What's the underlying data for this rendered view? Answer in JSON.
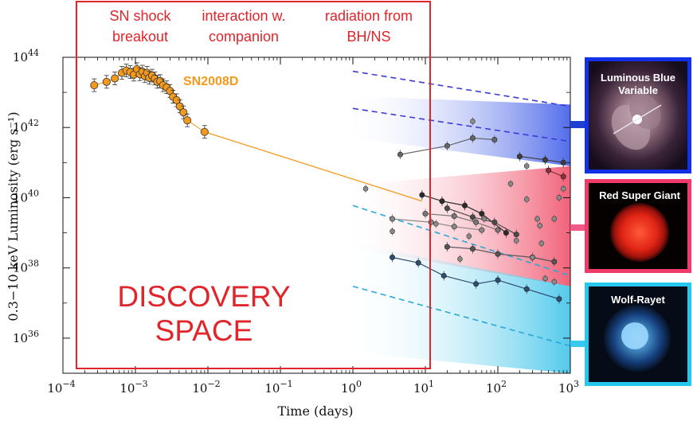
{
  "chart_data": {
    "type": "scatter",
    "xlabel": "Time (days)",
    "ylabel": "0.3−10 keV Luminosity (erg s⁻¹)",
    "x_scale": "log",
    "y_scale": "log",
    "xlim": [
      0.0001,
      1000
    ],
    "ylim": [
      1e+35,
      1e+44
    ],
    "x_ticks": [
      {
        "value": 0.0001,
        "base": "10",
        "exp": "−4"
      },
      {
        "value": 0.001,
        "base": "10",
        "exp": "−3"
      },
      {
        "value": 0.01,
        "base": "10",
        "exp": "−2"
      },
      {
        "value": 0.1,
        "base": "10",
        "exp": "−1"
      },
      {
        "value": 1,
        "base": "10",
        "exp": "0"
      },
      {
        "value": 10,
        "base": "10",
        "exp": "1"
      },
      {
        "value": 100,
        "base": "10",
        "exp": "2"
      },
      {
        "value": 1000,
        "base": "10",
        "exp": "3"
      }
    ],
    "y_ticks": [
      {
        "value": 1e+36,
        "base": "10",
        "exp": "36"
      },
      {
        "value": 1e+38,
        "base": "10",
        "exp": "38"
      },
      {
        "value": 1e+40,
        "base": "10",
        "exp": "40"
      },
      {
        "value": 1e+42,
        "base": "10",
        "exp": "42"
      },
      {
        "value": 1e+44,
        "base": "10",
        "exp": "44"
      }
    ],
    "sn2008d": {
      "label": "SN2008D",
      "color": "#f39a1e",
      "points": [
        [
          0.00027,
          1.6e+43
        ],
        [
          0.0004,
          2e+43
        ],
        [
          0.00052,
          2.5e+43
        ],
        [
          0.00065,
          3.6e+43
        ],
        [
          0.00075,
          4.2e+43
        ],
        [
          0.00085,
          3.8e+43
        ],
        [
          0.00095,
          3.2e+43
        ],
        [
          0.00105,
          4.6e+43
        ],
        [
          0.00115,
          3.3e+43
        ],
        [
          0.00125,
          3.9e+43
        ],
        [
          0.00135,
          2.9e+43
        ],
        [
          0.00145,
          3.6e+43
        ],
        [
          0.00155,
          2.6e+43
        ],
        [
          0.0017,
          3e+43
        ],
        [
          0.00185,
          2.5e+43
        ],
        [
          0.002,
          2e+43
        ],
        [
          0.0022,
          2.1e+43
        ],
        [
          0.0024,
          1.6e+43
        ],
        [
          0.0027,
          1.4e+43
        ],
        [
          0.003,
          1.1e+43
        ],
        [
          0.0033,
          7.5e+42
        ],
        [
          0.0037,
          6e+42
        ],
        [
          0.0041,
          4e+42
        ],
        [
          0.0046,
          2.7e+42
        ],
        [
          0.0052,
          1.6e+42
        ],
        [
          0.009,
          7.5e+41
        ]
      ],
      "fit_line": [
        [
          0.009,
          7.5e+41
        ],
        [
          9,
          8e+39
        ]
      ]
    },
    "sn_samples": [
      {
        "color": "#2b2b2b",
        "points": [
          [
            9,
            1.2e+40
          ],
          [
            17,
            8e+39
          ],
          [
            35,
            6e+39
          ],
          [
            60,
            3.5e+39
          ],
          [
            130,
            1e+39
          ]
        ]
      },
      {
        "color": "#4a4a4a",
        "points": [
          [
            20,
            5e+39
          ],
          [
            45,
            2.8e+39
          ],
          [
            90,
            2e+39
          ],
          [
            180,
            9e+38
          ]
        ]
      },
      {
        "color": "#777777",
        "points": [
          [
            10,
            3.5e+39
          ],
          [
            25,
            3e+39
          ],
          [
            50,
            2e+39
          ],
          [
            100,
            1.2e+39
          ]
        ]
      },
      {
        "color": "#666666",
        "points": [
          [
            4.5,
            1.7e+41
          ],
          [
            20,
            3e+41
          ],
          [
            45,
            5e+41
          ],
          [
            90,
            4.5e+41
          ]
        ]
      },
      {
        "color": "#888888",
        "points": [
          [
            3.5,
            2.5e+39
          ],
          [
            12,
            2e+39
          ],
          [
            25,
            1.5e+39
          ],
          [
            60,
            1.2e+39
          ]
        ]
      },
      {
        "color": "#555555",
        "points": [
          [
            20,
            4e+38
          ],
          [
            45,
            3.5e+38
          ],
          [
            100,
            2.5e+38
          ],
          [
            300,
            2e+38
          ],
          [
            600,
            1.5e+38
          ]
        ]
      },
      {
        "color": "#2e4e6e",
        "points": [
          [
            3.5,
            2e+38
          ],
          [
            8,
            1.4e+38
          ],
          [
            18,
            6e+37
          ],
          [
            50,
            3.5e+37
          ],
          [
            100,
            4.5e+37
          ],
          [
            250,
            2.5e+37
          ],
          [
            700,
            1.3e+37
          ]
        ]
      },
      {
        "color": "#3c3c3c",
        "points": [
          [
            200,
            1.5e+41
          ],
          [
            450,
            1.2e+41
          ],
          [
            800,
            1e+41
          ]
        ]
      },
      {
        "color": "#8a2f3c",
        "points": [
          [
            500,
            6e+40
          ],
          [
            800,
            4e+40
          ]
        ]
      }
    ],
    "sn_isolated": [
      [
        1.5,
        1.8e+40
      ],
      [
        45,
        1.5e+42
      ],
      [
        150,
        2.5e+40
      ],
      [
        250,
        8e+40
      ],
      [
        350,
        2.5e+39
      ],
      [
        700,
        1e+40
      ],
      [
        600,
        2.5e+39
      ],
      [
        400,
        5e+38
      ],
      [
        300,
        2e+38
      ],
      [
        180,
        6e+38
      ],
      [
        65,
        2.5e+39
      ],
      [
        250,
        9e+39
      ],
      [
        800,
        1.8e+40
      ],
      [
        30,
        1.8e+38
      ],
      [
        40,
        8e+38
      ],
      [
        14,
        1.8e+39
      ],
      [
        3.5,
        1.1e+39
      ],
      [
        380,
        1.6e+39
      ],
      [
        450,
        5e+37
      ],
      [
        600,
        4e+37
      ]
    ],
    "bands": [
      {
        "name": "blue",
        "color": "#3f5ce8",
        "upper": [
          [
            10,
            1.1e+43
          ],
          [
            1000,
            4.5e+42
          ]
        ],
        "lower": [
          [
            10,
            4e+41
          ],
          [
            1000,
            8e+40
          ]
        ],
        "line_color": "#3b3bd6"
      },
      {
        "name": "red",
        "color": "#f0506a",
        "upper": [
          [
            10,
            3e+40
          ],
          [
            1000,
            8e+40
          ]
        ],
        "lower": [
          [
            10,
            3e+38
          ],
          [
            1000,
            3e+37
          ]
        ]
      },
      {
        "name": "cyan",
        "color": "#3fc4ea",
        "upper": [
          [
            10,
            8e+38
          ],
          [
            1000,
            3e+37
          ]
        ],
        "lower": [
          [
            10,
            3e+35
          ],
          [
            1000,
            1e+35
          ]
        ],
        "line_color": "#2aa8d6"
      }
    ],
    "dashed_lines": [
      {
        "color": "#3b3bd6",
        "points": [
          [
            1,
            4e+43
          ],
          [
            1000,
            4e+42
          ]
        ]
      },
      {
        "color": "#3b3bd6",
        "points": [
          [
            1,
            3.5e+42
          ],
          [
            1000,
            4e+41
          ]
        ]
      },
      {
        "color": "#2aa8d6",
        "points": [
          [
            1,
            6e+39
          ],
          [
            1000,
            6e+37
          ]
        ]
      },
      {
        "color": "#2aa8d6",
        "points": [
          [
            1,
            3e+37
          ],
          [
            1000,
            6e+35
          ]
        ]
      }
    ]
  },
  "discovery": {
    "label_line1": "DISCOVERY",
    "label_line2": "SPACE",
    "color": "#e0252b"
  },
  "phases": [
    {
      "line1": "SN shock",
      "line2": "breakout"
    },
    {
      "line1": "interaction w.",
      "line2": "companion"
    },
    {
      "line1": "radiation from",
      "line2": "BH/NS"
    }
  ],
  "insets": [
    {
      "title_line1": "Luminous Blue",
      "title_line2": "Variable",
      "border": "#1230e6",
      "connector": "#1e40d0"
    },
    {
      "title_line1": "Red Super Giant",
      "title_line2": "",
      "border": "#ef3a6a",
      "connector": "#f05a88"
    },
    {
      "title_line1": "Wolf-Rayet",
      "title_line2": "",
      "border": "#26c8ee",
      "connector": "#38c8f0"
    }
  ]
}
